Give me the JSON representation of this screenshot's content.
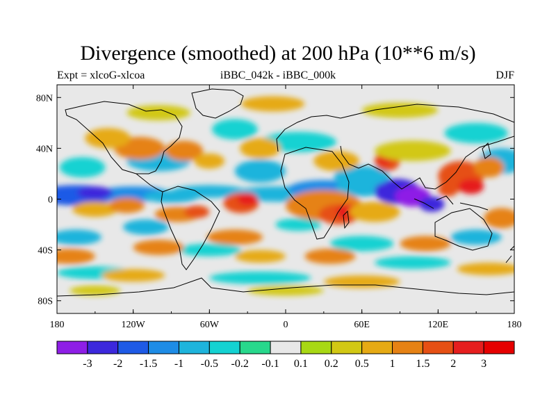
{
  "title": "Divergence (smoothed) at 200 hPa (10**6 m/s)",
  "subtitle_left": "Expt = xlcoG-xlcoa",
  "subtitle_center": "iBBC_042k - iBBC_000k",
  "subtitle_right": "DJF",
  "chart_data": {
    "type": "heatmap",
    "variable": "Divergence (smoothed) at 200 hPa",
    "units": "10**6 m/s",
    "experiment": "xlcoG-xlcoa",
    "comparison": "iBBC_042k - iBBC_000k",
    "season": "DJF",
    "lon_range": [
      -180,
      180
    ],
    "lat_range": [
      -90,
      90
    ],
    "x_ticks": [
      "180",
      "120W",
      "60W",
      "0",
      "60E",
      "120E",
      "180"
    ],
    "x_tick_values": [
      -180,
      -120,
      -60,
      0,
      60,
      120,
      180
    ],
    "y_ticks": [
      "80N",
      "40N",
      "0",
      "40S",
      "80S"
    ],
    "y_tick_values": [
      80,
      40,
      0,
      -40,
      -80
    ],
    "contour_levels": [
      "-3",
      "-2",
      "-1.5",
      "-1",
      "-0.5",
      "-0.2",
      "-0.1",
      "0.1",
      "0.2",
      "0.5",
      "1",
      "1.5",
      "2",
      "3"
    ],
    "level_colors": [
      "#8e1ee6",
      "#3c28dc",
      "#1e5ae6",
      "#1e8ce6",
      "#1eb4dc",
      "#14d2d2",
      "#28d88c",
      "#e8e8e8",
      "#a8d814",
      "#d2c814",
      "#e6aa14",
      "#e68214",
      "#e65014",
      "#e61e1e",
      "#e60000"
    ],
    "features": [
      {
        "name": "equatorial Pacific convergence",
        "lon": -150,
        "lat": 3,
        "value": -2.5
      },
      {
        "name": "South Atlantic divergence",
        "lon": -35,
        "lat": -3,
        "value": 2.0
      },
      {
        "name": "African divergence",
        "lon": 40,
        "lat": -12,
        "value": 2.5
      },
      {
        "name": "Indian Ocean convergence",
        "lon": 95,
        "lat": 5,
        "value": -3.0
      },
      {
        "name": "West Pacific divergence",
        "lon": 140,
        "lat": 15,
        "value": 2.5
      }
    ]
  }
}
